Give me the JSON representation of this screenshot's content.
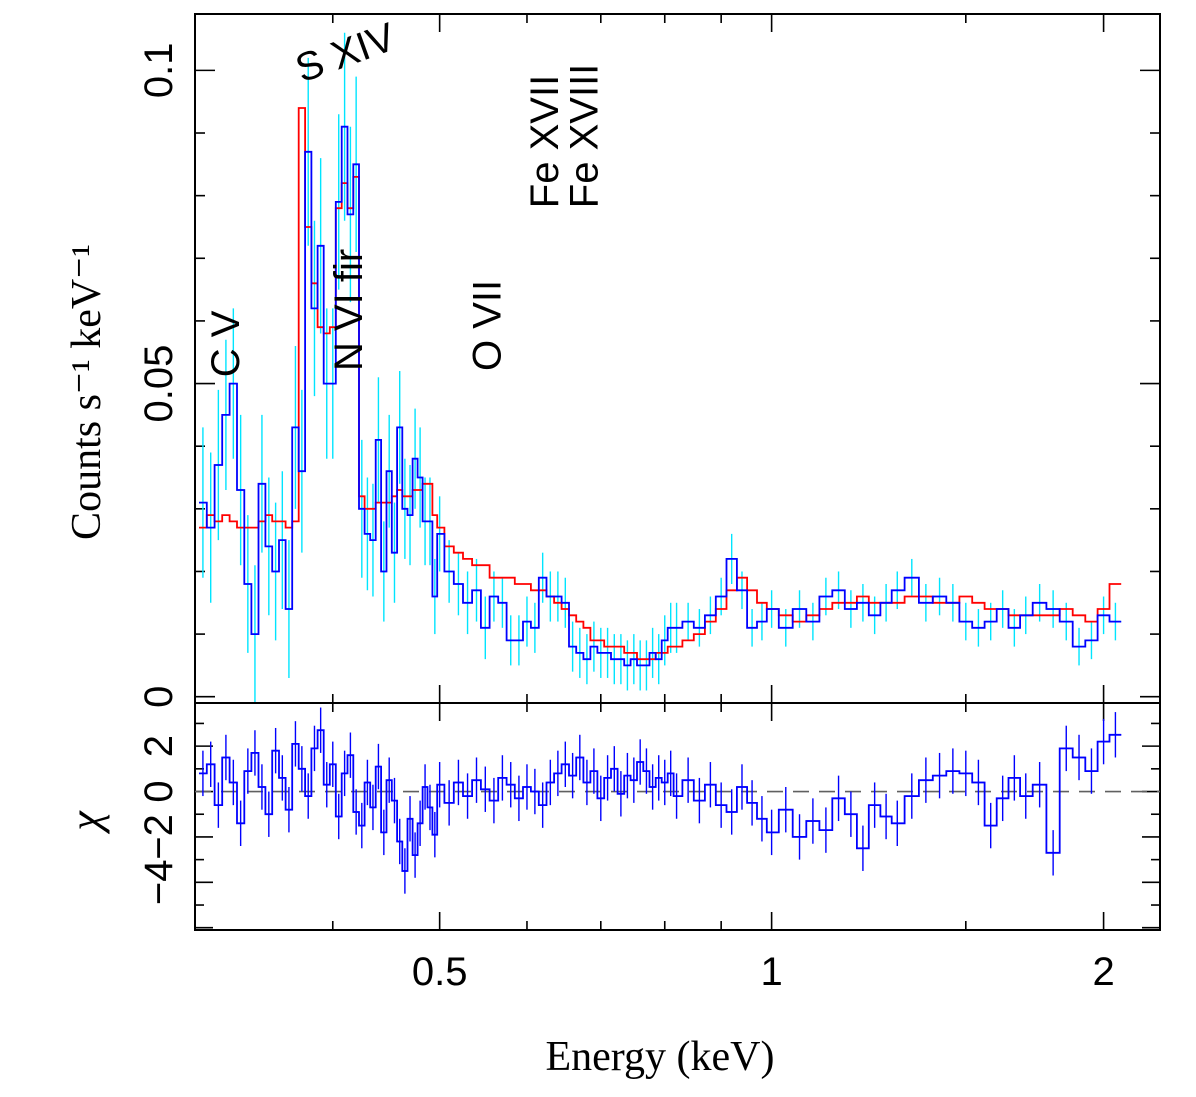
{
  "colors": {
    "data": "#0000ff",
    "model": "#ff0000",
    "errors": "#00e5ff",
    "residual_errors": "#0000ff",
    "zero_line": "#606060"
  },
  "chart_data": [
    {
      "type": "line",
      "panel": "spectrum",
      "title": "",
      "xlabel": "Energy (keV)",
      "ylabel": "Counts s⁻¹ keV⁻¹",
      "xscale": "log",
      "xlim": [
        0.3,
        2.25
      ],
      "ylim": [
        -0.001,
        0.109
      ],
      "x_ticks": [
        {
          "value": 0.5,
          "label": "0.5"
        },
        {
          "value": 1,
          "label": "1"
        },
        {
          "value": 2,
          "label": "2"
        }
      ],
      "y_ticks": [
        {
          "value": 0,
          "label": "0"
        },
        {
          "value": 0.05,
          "label": "0.05"
        },
        {
          "value": 0.1,
          "label": "0.1"
        }
      ],
      "annotations": [
        {
          "text": "C V",
          "energy": 0.329,
          "value": 0.051,
          "rotation": -90
        },
        {
          "text": "S XIV",
          "energy": 0.375,
          "value": 0.098,
          "rotation": -20
        },
        {
          "text": "N VI fir",
          "energy": 0.425,
          "value": 0.052,
          "rotation": -90
        },
        {
          "text": "O VII",
          "energy": 0.568,
          "value": 0.052,
          "rotation": -90
        },
        {
          "text": "Fe XVII",
          "energy": 0.64,
          "value": 0.078,
          "rotation": -90
        },
        {
          "text": "Fe XVIII",
          "energy": 0.695,
          "value": 0.078,
          "rotation": -90
        }
      ],
      "series": [
        {
          "name": "data",
          "x": [
            0.305,
            0.31,
            0.315,
            0.32,
            0.325,
            0.33,
            0.335,
            0.34,
            0.345,
            0.35,
            0.355,
            0.36,
            0.365,
            0.37,
            0.375,
            0.38,
            0.385,
            0.39,
            0.395,
            0.4,
            0.405,
            0.41,
            0.415,
            0.42,
            0.425,
            0.43,
            0.435,
            0.44,
            0.445,
            0.45,
            0.455,
            0.46,
            0.465,
            0.47,
            0.475,
            0.48,
            0.485,
            0.49,
            0.495,
            0.5,
            0.51,
            0.52,
            0.53,
            0.54,
            0.55,
            0.56,
            0.57,
            0.58,
            0.59,
            0.6,
            0.61,
            0.62,
            0.63,
            0.64,
            0.65,
            0.66,
            0.67,
            0.68,
            0.69,
            0.7,
            0.71,
            0.72,
            0.73,
            0.74,
            0.75,
            0.76,
            0.77,
            0.78,
            0.79,
            0.8,
            0.81,
            0.82,
            0.84,
            0.86,
            0.88,
            0.9,
            0.92,
            0.94,
            0.96,
            0.98,
            1.0,
            1.03,
            1.06,
            1.09,
            1.12,
            1.15,
            1.18,
            1.21,
            1.24,
            1.27,
            1.3,
            1.34,
            1.38,
            1.42,
            1.46,
            1.5,
            1.54,
            1.58,
            1.62,
            1.66,
            1.7,
            1.75,
            1.8,
            1.85,
            1.9,
            1.95,
            2.0,
            2.05
          ],
          "values": [
            0.031,
            0.027,
            0.037,
            0.045,
            0.05,
            0.033,
            0.018,
            0.01,
            0.034,
            0.024,
            0.02,
            0.025,
            0.014,
            0.043,
            0.036,
            0.087,
            0.062,
            0.072,
            0.05,
            0.05,
            0.079,
            0.091,
            0.077,
            0.085,
            0.03,
            0.026,
            0.025,
            0.041,
            0.02,
            0.036,
            0.023,
            0.043,
            0.03,
            0.029,
            0.038,
            0.035,
            0.028,
            0.028,
            0.016,
            0.026,
            0.02,
            0.018,
            0.015,
            0.017,
            0.011,
            0.016,
            0.015,
            0.009,
            0.009,
            0.012,
            0.011,
            0.019,
            0.016,
            0.016,
            0.015,
            0.008,
            0.007,
            0.006,
            0.008,
            0.007,
            0.007,
            0.006,
            0.006,
            0.005,
            0.006,
            0.005,
            0.005,
            0.007,
            0.006,
            0.009,
            0.011,
            0.011,
            0.012,
            0.011,
            0.013,
            0.016,
            0.022,
            0.017,
            0.011,
            0.012,
            0.014,
            0.011,
            0.014,
            0.012,
            0.016,
            0.017,
            0.014,
            0.015,
            0.013,
            0.015,
            0.017,
            0.019,
            0.015,
            0.016,
            0.015,
            0.012,
            0.011,
            0.012,
            0.014,
            0.011,
            0.013,
            0.015,
            0.014,
            0.012,
            0.008,
            0.009,
            0.013,
            0.012
          ],
          "errors": [
            0.012,
            0.012,
            0.012,
            0.012,
            0.012,
            0.012,
            0.011,
            0.011,
            0.011,
            0.011,
            0.011,
            0.011,
            0.011,
            0.013,
            0.013,
            0.015,
            0.014,
            0.014,
            0.012,
            0.012,
            0.014,
            0.015,
            0.014,
            0.014,
            0.011,
            0.009,
            0.009,
            0.01,
            0.008,
            0.009,
            0.008,
            0.009,
            0.008,
            0.008,
            0.008,
            0.008,
            0.007,
            0.007,
            0.006,
            0.006,
            0.005,
            0.005,
            0.005,
            0.005,
            0.005,
            0.004,
            0.004,
            0.004,
            0.004,
            0.004,
            0.004,
            0.004,
            0.004,
            0.004,
            0.004,
            0.004,
            0.004,
            0.004,
            0.004,
            0.004,
            0.004,
            0.004,
            0.004,
            0.004,
            0.004,
            0.004,
            0.004,
            0.004,
            0.004,
            0.004,
            0.004,
            0.004,
            0.003,
            0.003,
            0.003,
            0.003,
            0.004,
            0.003,
            0.003,
            0.003,
            0.003,
            0.003,
            0.003,
            0.003,
            0.003,
            0.003,
            0.003,
            0.003,
            0.003,
            0.003,
            0.003,
            0.003,
            0.003,
            0.003,
            0.003,
            0.003,
            0.003,
            0.003,
            0.003,
            0.003,
            0.003,
            0.003,
            0.003,
            0.003,
            0.003,
            0.003,
            0.003,
            0.003
          ]
        },
        {
          "name": "model",
          "x": [
            0.305,
            0.31,
            0.315,
            0.32,
            0.325,
            0.33,
            0.335,
            0.34,
            0.345,
            0.35,
            0.355,
            0.36,
            0.365,
            0.37,
            0.375,
            0.38,
            0.385,
            0.39,
            0.395,
            0.4,
            0.405,
            0.41,
            0.415,
            0.42,
            0.425,
            0.43,
            0.435,
            0.44,
            0.445,
            0.45,
            0.455,
            0.46,
            0.465,
            0.47,
            0.475,
            0.48,
            0.485,
            0.49,
            0.495,
            0.5,
            0.51,
            0.52,
            0.53,
            0.54,
            0.55,
            0.56,
            0.57,
            0.58,
            0.59,
            0.6,
            0.61,
            0.62,
            0.63,
            0.64,
            0.65,
            0.66,
            0.67,
            0.68,
            0.69,
            0.7,
            0.71,
            0.72,
            0.73,
            0.74,
            0.75,
            0.76,
            0.77,
            0.78,
            0.79,
            0.8,
            0.81,
            0.82,
            0.84,
            0.86,
            0.88,
            0.9,
            0.92,
            0.94,
            0.96,
            0.98,
            1.0,
            1.03,
            1.06,
            1.09,
            1.12,
            1.15,
            1.18,
            1.21,
            1.24,
            1.27,
            1.3,
            1.34,
            1.38,
            1.42,
            1.46,
            1.5,
            1.54,
            1.58,
            1.62,
            1.66,
            1.7,
            1.75,
            1.8,
            1.85,
            1.9,
            1.95,
            2.0,
            2.05
          ],
          "values": [
            0.027,
            0.029,
            0.028,
            0.029,
            0.028,
            0.027,
            0.027,
            0.027,
            0.028,
            0.029,
            0.028,
            0.028,
            0.027,
            0.028,
            0.094,
            0.075,
            0.066,
            0.059,
            0.058,
            0.059,
            0.078,
            0.082,
            0.078,
            0.083,
            0.032,
            0.03,
            0.03,
            0.031,
            0.031,
            0.031,
            0.032,
            0.033,
            0.032,
            0.032,
            0.033,
            0.033,
            0.034,
            0.034,
            0.029,
            0.027,
            0.024,
            0.023,
            0.022,
            0.021,
            0.021,
            0.019,
            0.019,
            0.019,
            0.018,
            0.018,
            0.017,
            0.017,
            0.016,
            0.015,
            0.014,
            0.013,
            0.012,
            0.011,
            0.009,
            0.009,
            0.008,
            0.008,
            0.008,
            0.007,
            0.007,
            0.006,
            0.006,
            0.006,
            0.007,
            0.007,
            0.008,
            0.008,
            0.009,
            0.01,
            0.012,
            0.014,
            0.017,
            0.019,
            0.017,
            0.015,
            0.014,
            0.013,
            0.012,
            0.013,
            0.014,
            0.015,
            0.015,
            0.016,
            0.015,
            0.015,
            0.015,
            0.016,
            0.016,
            0.015,
            0.015,
            0.016,
            0.015,
            0.014,
            0.014,
            0.013,
            0.013,
            0.013,
            0.013,
            0.014,
            0.013,
            0.012,
            0.014,
            0.018
          ]
        }
      ]
    },
    {
      "type": "line",
      "panel": "residuals",
      "xlabel": "Energy (keV)",
      "ylabel": "χ",
      "xscale": "log",
      "xlim": [
        0.3,
        2.25
      ],
      "ylim": [
        -6.1,
        3.9
      ],
      "y_ticks": [
        {
          "value": -4,
          "label": "−4"
        },
        {
          "value": -2,
          "label": "−2"
        },
        {
          "value": 0,
          "label": "0"
        },
        {
          "value": 2,
          "label": "2"
        }
      ],
      "zero_line": 0,
      "series": [
        {
          "name": "residuals",
          "x": [
            0.305,
            0.31,
            0.315,
            0.32,
            0.325,
            0.33,
            0.335,
            0.34,
            0.345,
            0.35,
            0.355,
            0.36,
            0.365,
            0.37,
            0.375,
            0.38,
            0.385,
            0.39,
            0.395,
            0.4,
            0.405,
            0.41,
            0.415,
            0.42,
            0.425,
            0.43,
            0.435,
            0.44,
            0.445,
            0.45,
            0.455,
            0.46,
            0.465,
            0.47,
            0.475,
            0.48,
            0.485,
            0.49,
            0.495,
            0.5,
            0.51,
            0.52,
            0.53,
            0.54,
            0.55,
            0.56,
            0.57,
            0.58,
            0.59,
            0.6,
            0.61,
            0.62,
            0.63,
            0.64,
            0.65,
            0.66,
            0.67,
            0.68,
            0.69,
            0.7,
            0.71,
            0.72,
            0.73,
            0.74,
            0.75,
            0.76,
            0.77,
            0.78,
            0.79,
            0.8,
            0.81,
            0.82,
            0.84,
            0.86,
            0.88,
            0.9,
            0.92,
            0.94,
            0.96,
            0.98,
            1.0,
            1.03,
            1.06,
            1.09,
            1.12,
            1.15,
            1.18,
            1.21,
            1.24,
            1.27,
            1.3,
            1.34,
            1.38,
            1.42,
            1.46,
            1.5,
            1.54,
            1.58,
            1.62,
            1.66,
            1.7,
            1.75,
            1.8,
            1.85,
            1.9,
            1.95,
            2.0,
            2.05
          ],
          "values": [
            0.8,
            1.2,
            -0.6,
            1.5,
            0.4,
            -1.4,
            0.9,
            1.7,
            0.2,
            -1.0,
            1.8,
            0.6,
            -0.8,
            2.1,
            1.0,
            -0.2,
            1.9,
            2.7,
            0.3,
            1.2,
            -1.1,
            0.8,
            1.6,
            -0.9,
            -1.5,
            0.4,
            -0.7,
            1.1,
            -1.8,
            0.5,
            -0.4,
            -2.2,
            -3.5,
            -1.2,
            -2.8,
            -1.4,
            0.2,
            -0.7,
            -1.9,
            0.3,
            -0.5,
            0.4,
            -0.2,
            0.5,
            0.1,
            -0.4,
            0.6,
            0.3,
            -0.3,
            0.2,
            0.0,
            -0.6,
            0.4,
            0.8,
            1.2,
            0.7,
            1.5,
            0.4,
            0.9,
            -0.3,
            0.6,
            1.0,
            -0.1,
            0.7,
            0.5,
            1.3,
            0.9,
            0.2,
            0.6,
            0.4,
            0.8,
            -0.2,
            0.5,
            -0.4,
            0.3,
            -0.6,
            -0.9,
            0.2,
            -0.5,
            -1.2,
            -1.8,
            -0.8,
            -2.0,
            -1.3,
            -1.7,
            -0.3,
            -1.0,
            -2.5,
            -0.6,
            -1.1,
            -1.4,
            -0.2,
            0.5,
            0.7,
            0.9,
            0.8,
            0.4,
            -1.5,
            -0.3,
            0.6,
            -0.2,
            0.3,
            -2.7,
            1.9,
            1.5,
            0.9,
            2.2,
            2.5
          ],
          "errors": [
            1
          ]
        }
      ]
    }
  ]
}
